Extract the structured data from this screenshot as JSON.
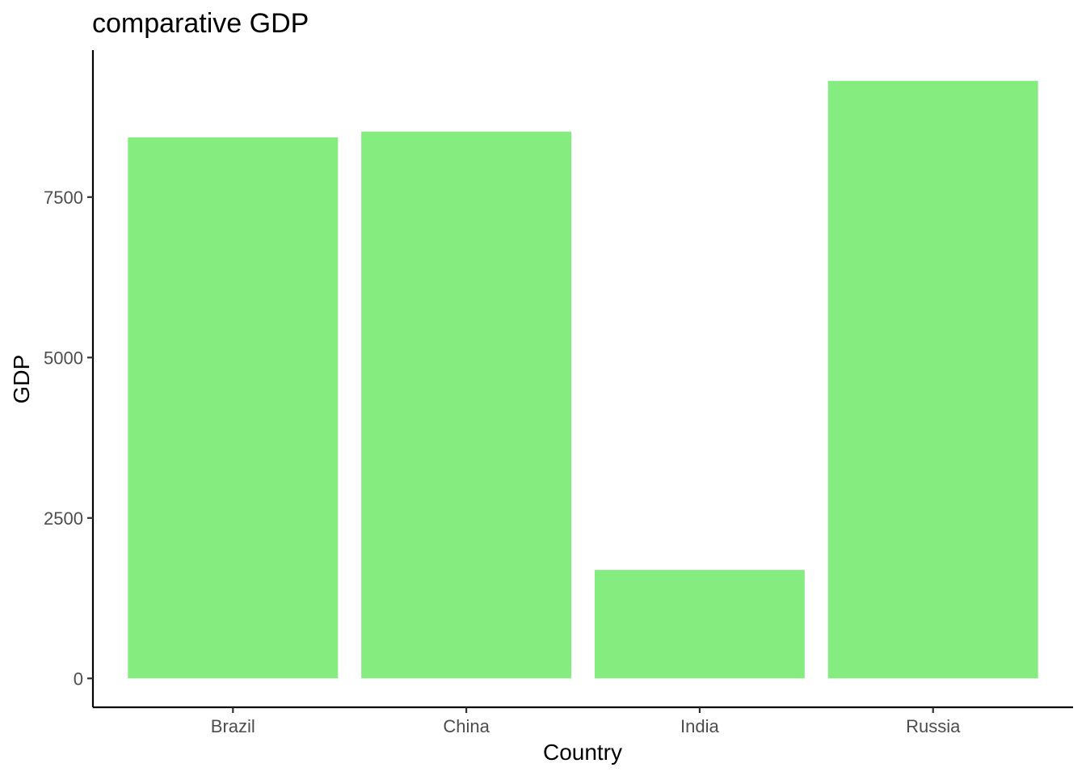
{
  "chart_data": {
    "type": "bar",
    "title": "comparative GDP",
    "xlabel": "Country",
    "ylabel": "GDP",
    "categories": [
      "Brazil",
      "China",
      "India",
      "Russia"
    ],
    "values": [
      8430,
      8520,
      1690,
      9310
    ],
    "ylim": [
      -450,
      9790
    ],
    "yticks": [
      0,
      2500,
      5000,
      7500
    ],
    "ytick_labels": [
      "0",
      "2500",
      "5000",
      "7500"
    ],
    "bar_color": "#85ED7F",
    "grid": false,
    "legend": "none"
  }
}
